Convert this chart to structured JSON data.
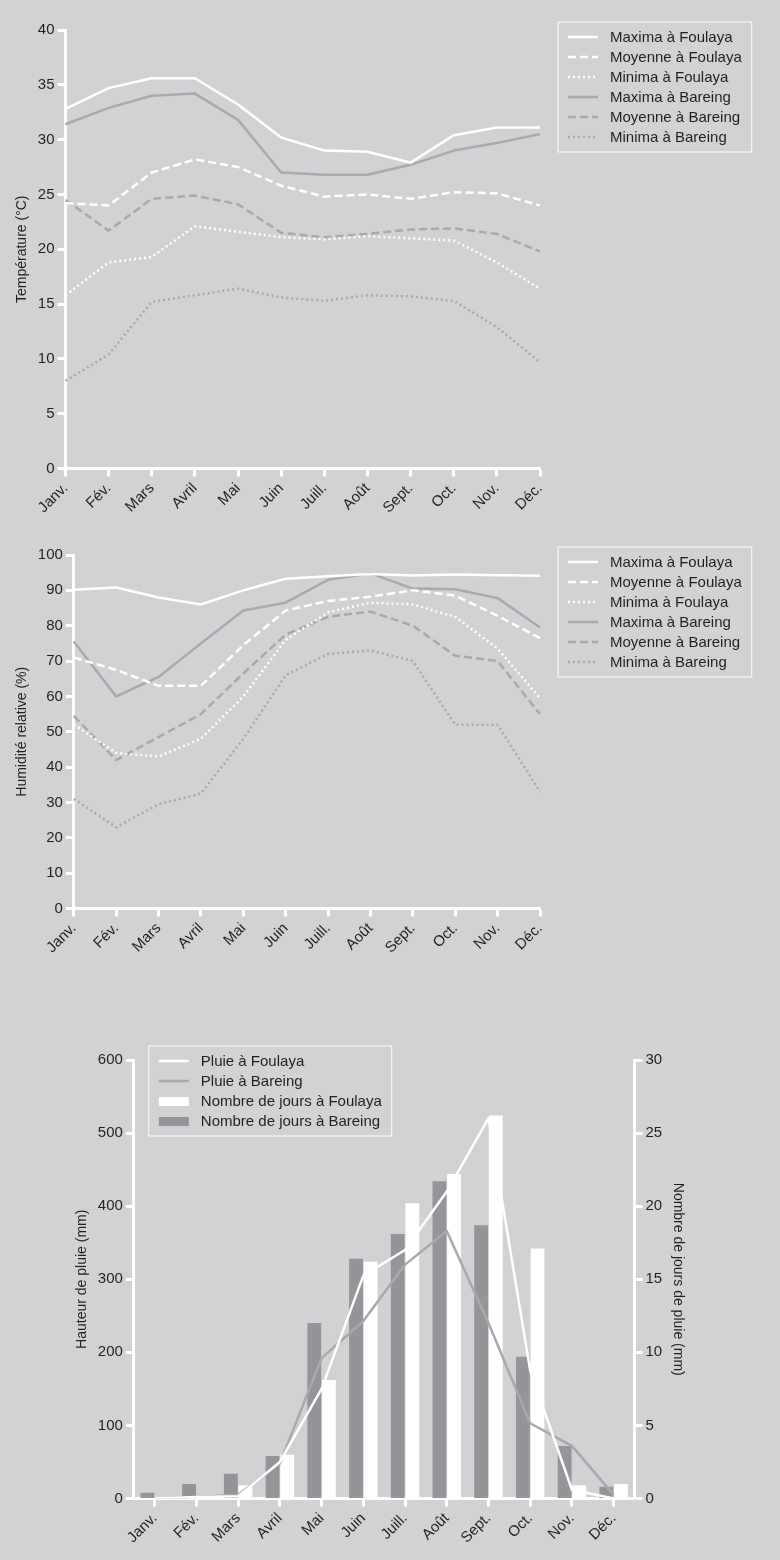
{
  "chart_data": [
    {
      "type": "line",
      "ylabel": "Température (°C)",
      "categories": [
        "Janv.",
        "Fév.",
        "Mars",
        "Avril",
        "Mai",
        "Juin",
        "Juill.",
        "Août",
        "Sept.",
        "Oct.",
        "Nov.",
        "Déc."
      ],
      "ylim": [
        0,
        40
      ],
      "yticks": [
        0,
        5,
        10,
        15,
        20,
        25,
        30,
        35,
        40
      ],
      "legend": "right",
      "series": [
        {
          "name": "Maxima à Foulaya",
          "color": "#ffffff",
          "line_style": "solid",
          "values": [
            32.8,
            34.7,
            35.6,
            35.6,
            33.2,
            30.2,
            29.0,
            28.9,
            27.9,
            30.4,
            31.1,
            31.1
          ]
        },
        {
          "name": "Moyenne à Foulaya",
          "color": "#ffffff",
          "line_style": "dashed",
          "values": [
            24.2,
            24.0,
            27.0,
            28.2,
            27.5,
            25.8,
            24.8,
            25.0,
            24.6,
            25.2,
            25.1,
            24.0
          ]
        },
        {
          "name": "Minima à Foulaya",
          "color": "#ffffff",
          "line_style": "dotted",
          "values": [
            15.8,
            18.8,
            19.3,
            22.1,
            21.6,
            21.1,
            20.9,
            21.2,
            21.0,
            20.8,
            18.8,
            16.4
          ]
        },
        {
          "name": "Maxima à Bareing",
          "color": "#a7a9ac",
          "line_style": "solid",
          "values": [
            31.4,
            32.9,
            34.0,
            34.2,
            31.8,
            27.0,
            26.8,
            26.8,
            27.7,
            29.0,
            29.7,
            30.5
          ]
        },
        {
          "name": "Moyenne à Bareing",
          "color": "#a7a9ac",
          "line_style": "dashed",
          "values": [
            24.5,
            21.7,
            24.6,
            24.9,
            24.1,
            21.5,
            21.1,
            21.4,
            21.8,
            21.9,
            21.4,
            19.8
          ]
        },
        {
          "name": "Minima à Bareing",
          "color": "#a7a9ac",
          "line_style": "dotted",
          "values": [
            8.0,
            10.4,
            15.2,
            15.8,
            16.4,
            15.6,
            15.3,
            15.8,
            15.7,
            15.3,
            12.9,
            9.7
          ]
        }
      ]
    },
    {
      "type": "line",
      "ylabel": "Humidité relative (%)",
      "categories": [
        "Janv.",
        "Fév.",
        "Mars",
        "Avril",
        "Mai",
        "Juin",
        "Juill.",
        "Août",
        "Sept.",
        "Oct.",
        "Nov.",
        "Déc."
      ],
      "ylim": [
        0,
        100
      ],
      "yticks": [
        0,
        10,
        20,
        30,
        40,
        50,
        60,
        70,
        80,
        90,
        100
      ],
      "legend": "right",
      "series": [
        {
          "name": "Maxima à Foulaya",
          "color": "#ffffff",
          "line_style": "solid",
          "values": [
            90.2,
            90.8,
            88,
            86,
            90,
            93.3,
            94,
            94.6,
            94.2,
            94.5,
            94.3,
            94.1
          ]
        },
        {
          "name": "Moyenne à Foulaya",
          "color": "#ffffff",
          "line_style": "dashed",
          "values": [
            71,
            67.5,
            63,
            63,
            74.5,
            84.3,
            87,
            88.2,
            90,
            88.5,
            82.8,
            76.5
          ]
        },
        {
          "name": "Minima à Foulaya",
          "color": "#ffffff",
          "line_style": "dotted",
          "values": [
            52,
            44,
            43,
            48,
            60,
            76,
            83.8,
            86.5,
            86,
            82.5,
            73.5,
            59.5
          ]
        },
        {
          "name": "Maxima à Bareing",
          "color": "#a7a9ac",
          "line_style": "solid",
          "values": [
            75.5,
            60,
            65.5,
            75,
            84.3,
            86.5,
            93,
            94.8,
            90.5,
            90.3,
            87.8,
            79.5
          ]
        },
        {
          "name": "Moyenne à Bareing",
          "color": "#a7a9ac",
          "line_style": "dashed",
          "values": [
            54.5,
            42,
            48.5,
            55,
            66.5,
            77.5,
            82.5,
            84,
            80,
            71.5,
            70,
            55
          ]
        },
        {
          "name": "Minima à Bareing",
          "color": "#a7a9ac",
          "line_style": "dotted",
          "values": [
            31,
            23,
            29.5,
            32.5,
            48,
            66,
            72,
            73,
            70,
            52,
            52,
            33
          ]
        }
      ]
    },
    {
      "type": "bar",
      "ylabel": "Hauteur de pluie (mm)",
      "y2label": "Nombre de jours de pluie (mm)",
      "categories": [
        "Janv.",
        "Fév.",
        "Mars",
        "Avril",
        "Mai",
        "Juin",
        "Juill.",
        "Août",
        "Sept.",
        "Oct.",
        "Nov.",
        "Déc."
      ],
      "ylim": [
        0,
        600
      ],
      "yticks": [
        0,
        100,
        200,
        300,
        400,
        500,
        600
      ],
      "y2lim": [
        0,
        30
      ],
      "y2ticks": [
        0,
        5,
        10,
        15,
        20,
        25,
        30
      ],
      "legend": "top left",
      "series": [
        {
          "name": "Pluie à Foulaya",
          "type": "line",
          "color": "#ffffff",
          "values": [
            0,
            2,
            3,
            50,
            150,
            305,
            340,
            420,
            520,
            175,
            12,
            0
          ]
        },
        {
          "name": "Pluie à Bareing",
          "type": "line",
          "color": "#a7a9ac",
          "values": [
            0,
            2,
            5,
            48,
            192,
            243,
            320,
            366,
            240,
            103,
            72,
            5
          ]
        },
        {
          "name": "Nombre de jours à Foulaya",
          "type": "bar",
          "axis": "y2",
          "color": "#ffffff",
          "values": [
            0,
            0,
            0.9,
            3,
            8.1,
            16.2,
            20.2,
            22.2,
            26.2,
            17.1,
            0.9,
            1
          ]
        },
        {
          "name": "Nombre de jours à Bareing",
          "type": "bar",
          "axis": "y2",
          "color": "#939598",
          "values": [
            0.4,
            1,
            1.7,
            2.9,
            12,
            16.4,
            18.1,
            21.7,
            18.7,
            9.7,
            3.6,
            0.8
          ]
        }
      ]
    }
  ]
}
